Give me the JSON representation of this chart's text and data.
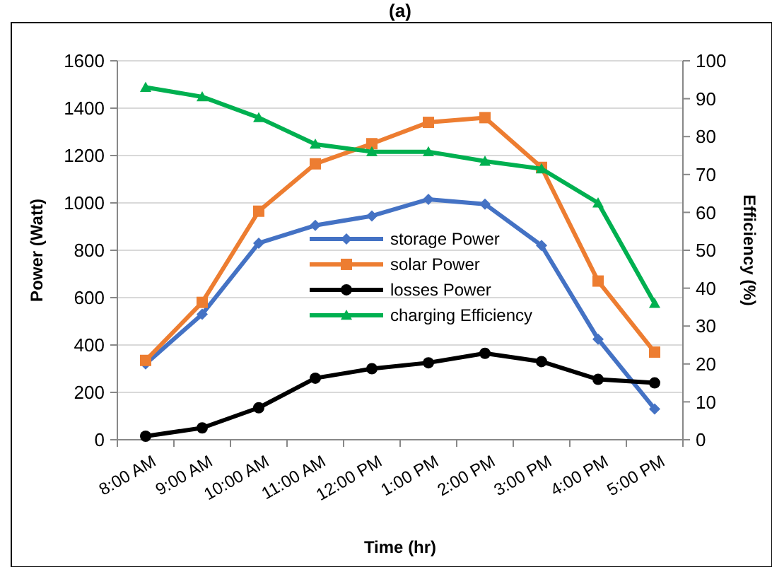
{
  "chart_data": {
    "type": "line",
    "title": "(a)",
    "xlabel": "Time (hr)",
    "ylabel": "Power (Watt)",
    "y2label": "Efficiency (%)",
    "categories": [
      "8:00 AM",
      "9:00 AM",
      "10:00 AM",
      "11:00 AM",
      "12:00 PM",
      "1:00 PM",
      "2:00 PM",
      "3:00 PM",
      "4:00 PM",
      "5:00 PM"
    ],
    "series": [
      {
        "name": "storage Power",
        "color": "#4472c4",
        "marker": "diamond",
        "values": [
          320,
          530,
          830,
          905,
          945,
          1015,
          995,
          820,
          425,
          130
        ]
      },
      {
        "name": "solar Power",
        "color": "#ed7d31",
        "marker": "square",
        "values": [
          335,
          580,
          965,
          1165,
          1250,
          1340,
          1360,
          1150,
          670,
          370
        ]
      },
      {
        "name": "losses Power",
        "color": "#000000",
        "marker": "circle",
        "values": [
          15,
          50,
          135,
          260,
          300,
          325,
          365,
          330,
          255,
          240
        ]
      },
      {
        "name": "charging Efficiency",
        "color": "#00b050",
        "marker": "triangle",
        "axis": "y2",
        "values": [
          93,
          90.5,
          85,
          78,
          76,
          76,
          73.5,
          71.5,
          62.5,
          36
        ]
      }
    ],
    "ylim": [
      0,
      1600
    ],
    "yticks": [
      0,
      200,
      400,
      600,
      800,
      1000,
      1200,
      1400,
      1600
    ],
    "y2lim": [
      0,
      100
    ],
    "y2ticks": [
      0,
      10,
      20,
      30,
      40,
      50,
      60,
      70,
      80,
      90,
      100
    ],
    "grid": "y",
    "legend": "center",
    "line_style": "solid"
  }
}
